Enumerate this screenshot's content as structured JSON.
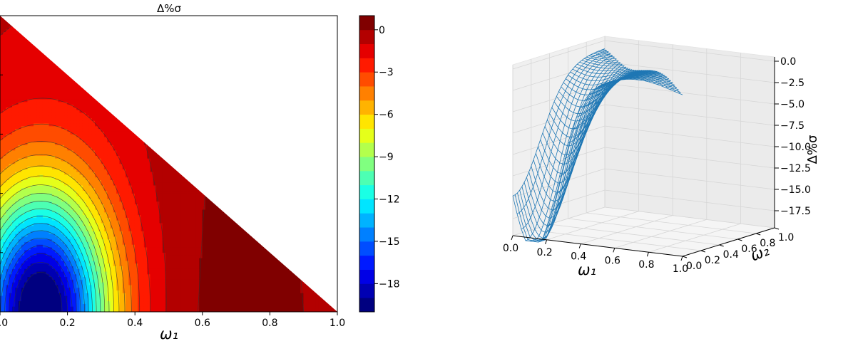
{
  "chart_data": [
    {
      "type": "contour",
      "title": "Δ%σ",
      "xlabel": "ω₁",
      "x_ticks": [
        "0.0",
        "0.2",
        "0.4",
        "0.6",
        "0.8",
        "1.0"
      ],
      "xlim": [
        0,
        1
      ],
      "ylim": [
        0,
        1
      ],
      "region": "ω₁ + ω₂ ≤ 1",
      "colormap": "jet",
      "levels": [
        -20,
        -19,
        -18,
        -17,
        -16,
        -15,
        -14,
        -13,
        -12,
        -11,
        -10,
        -9,
        -8,
        -7,
        -6,
        -5,
        -4,
        -3,
        -2,
        -1,
        0,
        1
      ],
      "colorbar": {
        "ticks": [
          "0",
          "−3",
          "−6",
          "−9",
          "−12",
          "−15",
          "−18"
        ],
        "tick_values": [
          0,
          -3,
          -6,
          -9,
          -12,
          -15,
          -18
        ],
        "range": [
          -20,
          1
        ]
      },
      "minimum": {
        "x": 0.12,
        "y": 0.0,
        "value": -19.8
      },
      "ridge_x_at_y0": 0.55
    },
    {
      "type": "surface3d",
      "xlabel": "ω₁",
      "ylabel": "ω₂",
      "zlabel": "Δ%σ",
      "x_ticks": [
        "0.0",
        "0.2",
        "0.4",
        "0.6",
        "0.8",
        "1.0"
      ],
      "y_ticks": [
        "0.0",
        "0.2",
        "0.4",
        "0.6",
        "0.8",
        "1.0"
      ],
      "z_ticks": [
        "0.0",
        "−2.5",
        "−5.0",
        "−7.5",
        "−10.0",
        "−12.5",
        "−15.0",
        "−17.5"
      ],
      "z_tick_values": [
        0,
        -2.5,
        -5,
        -7.5,
        -10,
        -12.5,
        -15,
        -17.5
      ],
      "zlim": [
        -19.5,
        0.5
      ],
      "style": "wireframe",
      "color": "#1f77b4"
    }
  ]
}
